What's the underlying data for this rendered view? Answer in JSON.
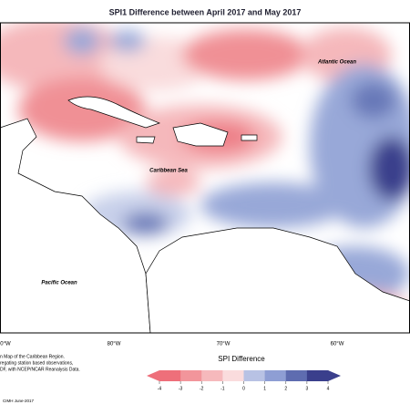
{
  "header": {
    "title": "SPI1 Difference between April 2017 and May 2017"
  },
  "map": {
    "labels": [
      "Atlantic Ocean",
      "Caribbean Sea",
      "Pacific Ocean"
    ],
    "longitude_labels": [
      "0°W",
      "80°W",
      "70°W",
      "60°W"
    ]
  },
  "footnote": [
    "n Map of the Caribbean Region.",
    "regating station based observations,",
    "DF, with NCEP/NCAR Reanalysis Data."
  ],
  "legend": {
    "title": "SPI Difference",
    "ticks": [
      -4,
      -3,
      -2,
      -1,
      0,
      1,
      2,
      3,
      4
    ]
  },
  "credit": "CIMH June-2017"
}
